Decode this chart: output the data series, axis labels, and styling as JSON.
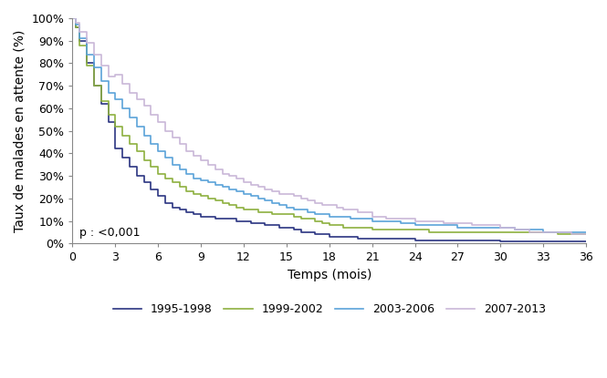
{
  "title": "",
  "xlabel": "Temps (mois)",
  "ylabel": "Taux de malades en attente (%)",
  "xlim": [
    0,
    36
  ],
  "ylim": [
    0,
    100
  ],
  "xticks": [
    0,
    3,
    6,
    9,
    12,
    15,
    18,
    21,
    24,
    27,
    30,
    33,
    36
  ],
  "yticks": [
    0,
    10,
    20,
    30,
    40,
    50,
    60,
    70,
    80,
    90,
    100
  ],
  "ytick_labels": [
    "0%",
    "10%",
    "20%",
    "30%",
    "40%",
    "50%",
    "60%",
    "70%",
    "80%",
    "90%",
    "100%"
  ],
  "annotation": "p : <0,001",
  "legend_labels": [
    "1995-1998",
    "1999-2002",
    "2003-2006",
    "2007-2013"
  ],
  "colors": [
    "#2b3582",
    "#8db040",
    "#5ba3d9",
    "#c9b8d8"
  ],
  "background_color": "#ffffff",
  "series": {
    "1995-1998": {
      "x": [
        0,
        0.2,
        0.5,
        1,
        1.5,
        2,
        2.5,
        3,
        3.5,
        4,
        4.5,
        5,
        5.5,
        6,
        6.5,
        7,
        7.5,
        8,
        8.5,
        9,
        9.5,
        10,
        10.5,
        11,
        11.5,
        12,
        12.5,
        13,
        13.5,
        14,
        14.5,
        15,
        15.5,
        16,
        16.5,
        17,
        17.5,
        18,
        18.5,
        19,
        20,
        21,
        22,
        23,
        24,
        25,
        26,
        27,
        28,
        29,
        30,
        31,
        32,
        33,
        34,
        35,
        36
      ],
      "y": [
        100,
        96,
        90,
        80,
        70,
        62,
        54,
        42,
        38,
        34,
        30,
        27,
        24,
        21,
        18,
        16,
        15,
        14,
        13,
        12,
        12,
        11,
        11,
        11,
        10,
        10,
        9,
        9,
        8,
        8,
        7,
        7,
        6,
        5,
        5,
        4,
        4,
        3,
        3,
        3,
        2,
        2,
        2,
        2,
        1.5,
        1.5,
        1.5,
        1.5,
        1.5,
        1.5,
        1,
        1,
        1,
        1,
        1,
        1,
        1
      ]
    },
    "1999-2002": {
      "x": [
        0,
        0.2,
        0.5,
        1,
        1.5,
        2,
        2.5,
        3,
        3.5,
        4,
        4.5,
        5,
        5.5,
        6,
        6.5,
        7,
        7.5,
        8,
        8.5,
        9,
        9.5,
        10,
        10.5,
        11,
        11.5,
        12,
        12.5,
        13,
        13.5,
        14,
        14.5,
        15,
        15.5,
        16,
        16.5,
        17,
        17.5,
        18,
        18.5,
        19,
        19.5,
        20,
        21,
        22,
        23,
        24,
        25,
        26,
        27,
        28,
        29,
        30,
        31,
        32,
        33,
        34,
        35,
        36
      ],
      "y": [
        100,
        96,
        88,
        79,
        70,
        63,
        57,
        52,
        48,
        44,
        41,
        37,
        34,
        31,
        29,
        27,
        25,
        23,
        22,
        21,
        20,
        19,
        18,
        17,
        16,
        15,
        15,
        14,
        14,
        13,
        13,
        13,
        12,
        11,
        11,
        10,
        9,
        8,
        8,
        7,
        7,
        7,
        6,
        6,
        6,
        6,
        5,
        5,
        5,
        5,
        5,
        5,
        5,
        5,
        5,
        4,
        4,
        4
      ]
    },
    "2003-2006": {
      "x": [
        0,
        0.2,
        0.5,
        1,
        1.5,
        2,
        2.5,
        3,
        3.5,
        4,
        4.5,
        5,
        5.5,
        6,
        6.5,
        7,
        7.5,
        8,
        8.5,
        9,
        9.5,
        10,
        10.5,
        11,
        11.5,
        12,
        12.5,
        13,
        13.5,
        14,
        14.5,
        15,
        15.5,
        16,
        16.5,
        17,
        17.5,
        18,
        18.5,
        19,
        19.5,
        20,
        21,
        22,
        23,
        24,
        25,
        26,
        27,
        28,
        29,
        30,
        31,
        32,
        33,
        34,
        35,
        36
      ],
      "y": [
        100,
        97,
        91,
        84,
        78,
        72,
        67,
        64,
        60,
        56,
        52,
        48,
        44,
        41,
        38,
        35,
        33,
        31,
        29,
        28,
        27,
        26,
        25,
        24,
        23,
        22,
        21,
        20,
        19,
        18,
        17,
        16,
        15,
        15,
        14,
        13,
        13,
        12,
        12,
        12,
        11,
        11,
        10,
        10,
        9,
        8,
        8,
        8,
        7,
        7,
        7,
        7,
        6,
        6,
        5,
        5,
        5,
        5
      ]
    },
    "2007-2013": {
      "x": [
        0,
        0.2,
        0.5,
        1,
        1.5,
        2,
        2.5,
        3,
        3.5,
        4,
        4.5,
        5,
        5.5,
        6,
        6.5,
        7,
        7.5,
        8,
        8.5,
        9,
        9.5,
        10,
        10.5,
        11,
        11.5,
        12,
        12.5,
        13,
        13.5,
        14,
        14.5,
        15,
        15.5,
        16,
        16.5,
        17,
        17.5,
        18,
        18.5,
        19,
        19.5,
        20,
        21,
        22,
        23,
        24,
        25,
        26,
        27,
        28,
        29,
        30,
        31,
        32,
        33,
        34,
        35,
        36
      ],
      "y": [
        100,
        98,
        94,
        89,
        84,
        79,
        74,
        75,
        71,
        67,
        64,
        61,
        57,
        54,
        50,
        47,
        44,
        41,
        39,
        37,
        35,
        33,
        31,
        30,
        29,
        27,
        26,
        25,
        24,
        23,
        22,
        22,
        21,
        20,
        19,
        18,
        17,
        17,
        16,
        15,
        15,
        14,
        12,
        11,
        11,
        10,
        10,
        9,
        9,
        8,
        8,
        7,
        6,
        5,
        5,
        5,
        4,
        4
      ]
    }
  }
}
